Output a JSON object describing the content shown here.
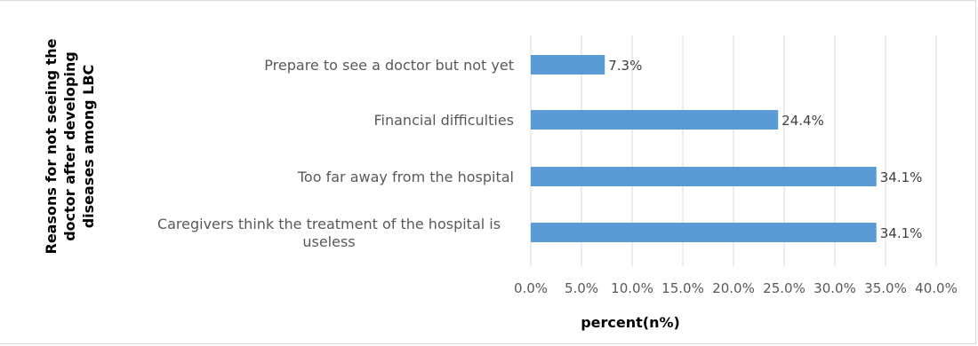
{
  "chart_data": {
    "type": "bar",
    "orientation": "horizontal",
    "categories": [
      "Prepare to see a doctor but not yet",
      "Financial difficulties",
      "Too far away from the hospital",
      "Caregivers think the treatment of the hospital is useless"
    ],
    "category_lines": [
      [
        "Prepare to see a doctor but not yet"
      ],
      [
        "Financial difficulties"
      ],
      [
        "Too far away from the hospital"
      ],
      [
        "Caregivers think the treatment of the hospital is",
        "useless"
      ]
    ],
    "values": [
      7.3,
      24.4,
      34.1,
      34.1
    ],
    "data_labels": [
      "7.3%",
      "24.4%",
      "34.1%",
      "34.1%"
    ],
    "xlabel": "percent(n%)",
    "ylabel_lines": [
      "Reasons for not seeing the",
      "doctor after developing",
      "diseases among LBC"
    ],
    "xlim": [
      0,
      40
    ],
    "xticks": [
      0,
      5,
      10,
      15,
      20,
      25,
      30,
      35,
      40
    ],
    "xtick_labels": [
      "0.0%",
      "5.0%",
      "10.0%",
      "15.0%",
      "20.0%",
      "25.0%",
      "30.0%",
      "35.0%",
      "40.0%"
    ],
    "bar_color": "#5b9bd5",
    "grid": true,
    "legend": "none"
  }
}
